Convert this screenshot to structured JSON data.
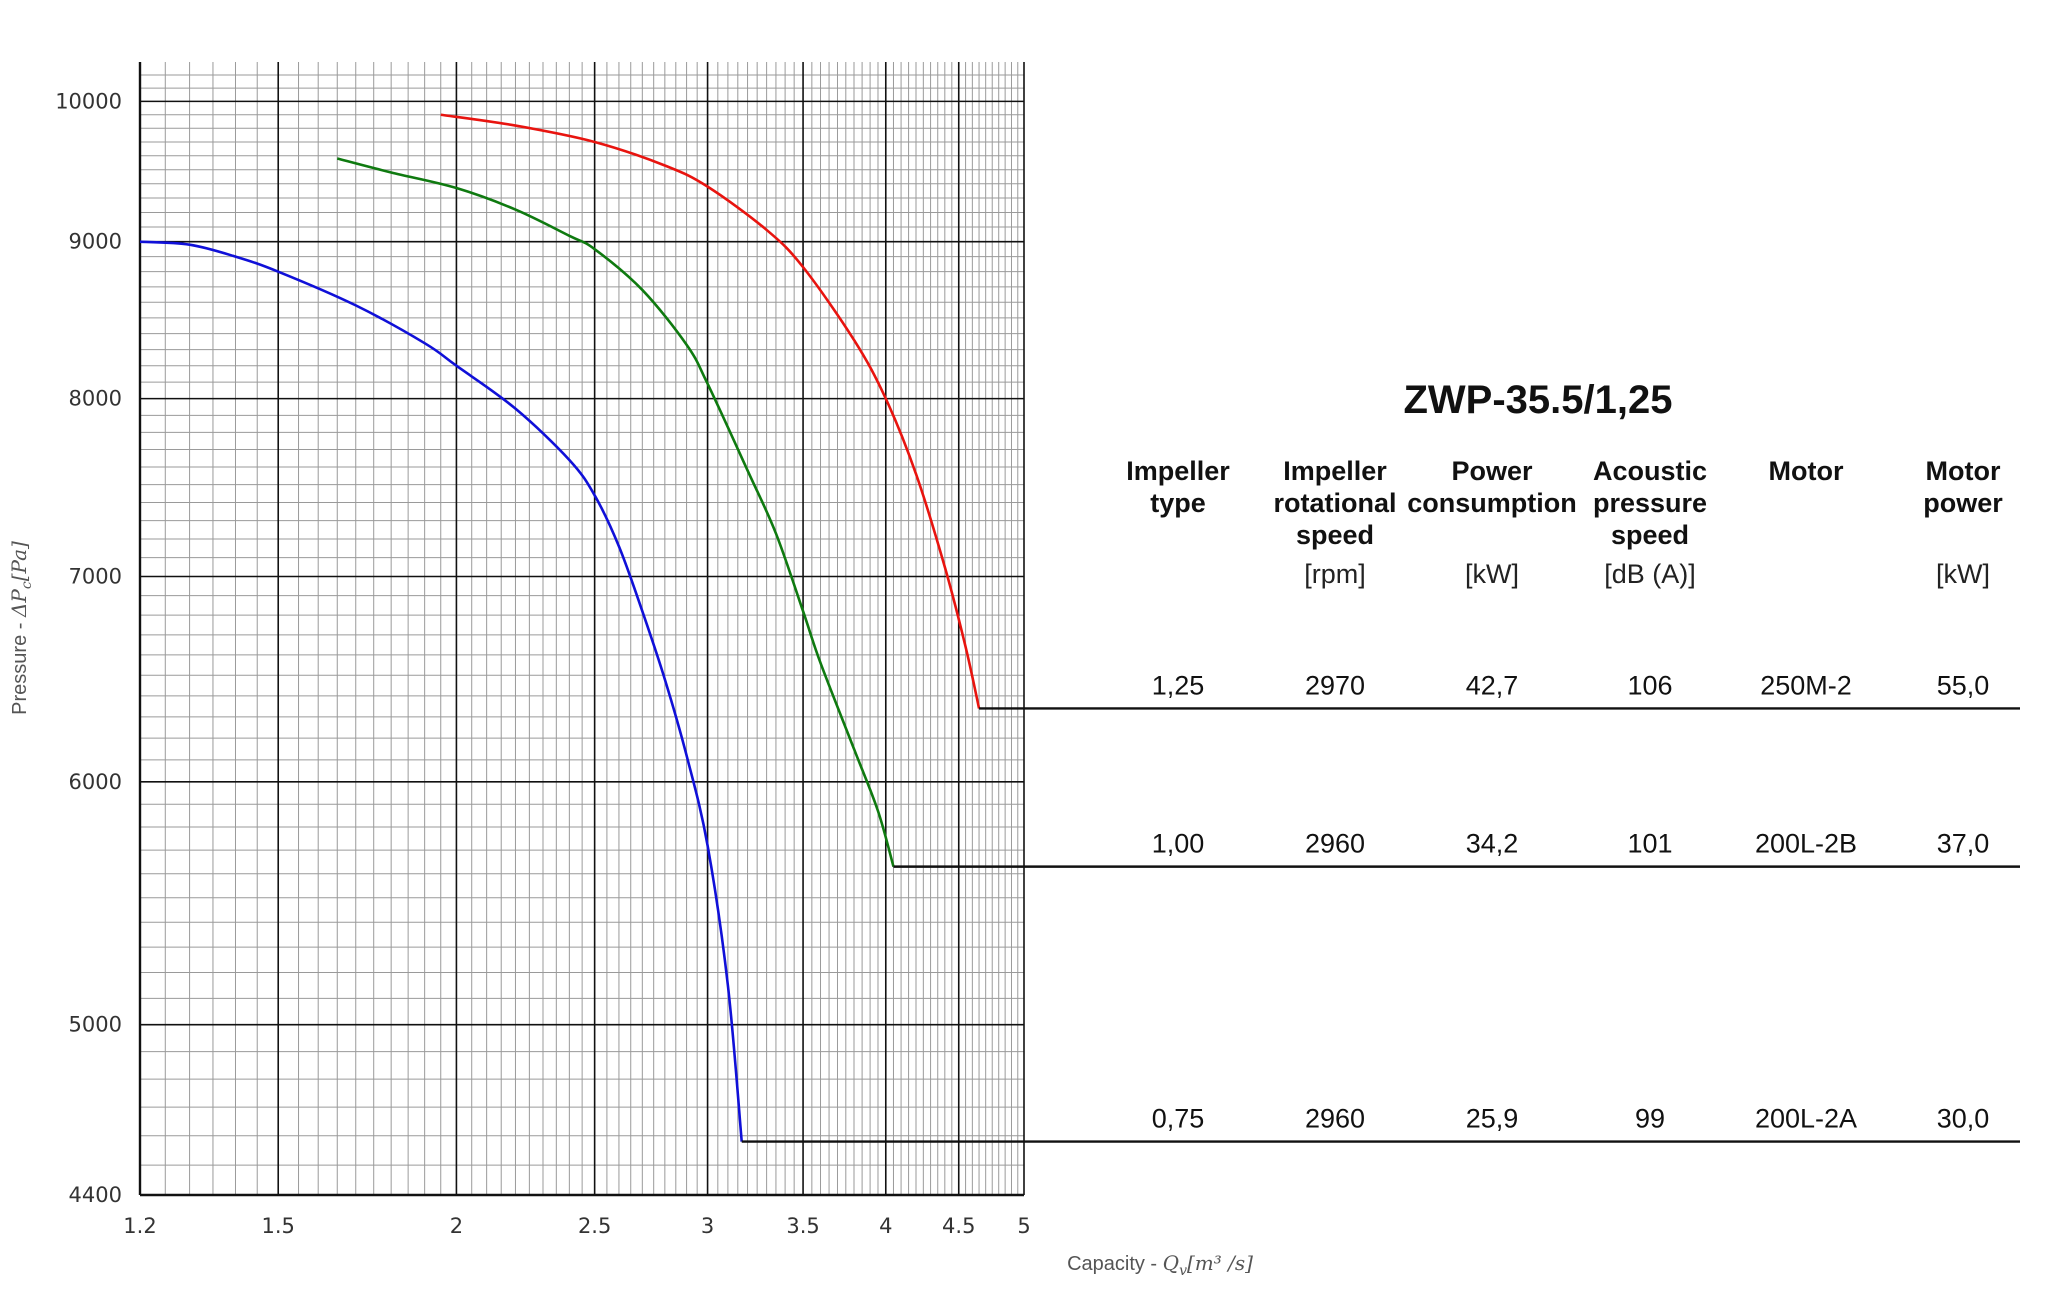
{
  "chart_data": {
    "type": "line",
    "title": "ZWP-35.5/1,25",
    "xlabel": {
      "prefix": "Capacity - ",
      "symbol": "Q",
      "sub": "v",
      "unit": "[m³ /s]"
    },
    "ylabel": {
      "prefix": "Pressure - ",
      "symbol": "ΔP",
      "sub": "c",
      "unit": "[Pa]"
    },
    "x_scale": "log",
    "y_scale": "log",
    "xlim": [
      1.2,
      5
    ],
    "ylim": [
      4400,
      10300
    ],
    "x_ticks": [
      "1.2",
      "1.5",
      "2",
      "2.5",
      "3",
      "3.5",
      "4",
      "4.5",
      "5"
    ],
    "y_ticks": [
      "4400",
      "5000",
      "6000",
      "7000",
      "8000",
      "9000",
      "10000"
    ],
    "grid": true,
    "series": [
      {
        "impeller": "1,25",
        "color": "#e8140f",
        "x": [
          1.95,
          2.2,
          2.5,
          2.8,
          3.0,
          3.3,
          3.5,
          3.8,
          4.0,
          4.2,
          4.4,
          4.55,
          4.65
        ],
        "y": [
          9900,
          9820,
          9700,
          9530,
          9380,
          9080,
          8830,
          8360,
          8000,
          7560,
          7050,
          6640,
          6340
        ]
      },
      {
        "impeller": "1,00",
        "color": "#0f7a10",
        "x": [
          1.65,
          1.8,
          2.0,
          2.2,
          2.4,
          2.5,
          2.7,
          2.9,
          3.0,
          3.2,
          3.35,
          3.5,
          3.6,
          3.8,
          3.95,
          4.05
        ],
        "y": [
          9580,
          9480,
          9370,
          9220,
          9040,
          8950,
          8680,
          8330,
          8090,
          7580,
          7230,
          6820,
          6560,
          6150,
          5870,
          5630
        ]
      },
      {
        "impeller": "0,75",
        "color": "#1010d8",
        "x": [
          1.2,
          1.3,
          1.4,
          1.5,
          1.7,
          1.9,
          2.0,
          2.2,
          2.4,
          2.5,
          2.6,
          2.7,
          2.8,
          2.9,
          3.0,
          3.1,
          3.17
        ],
        "y": [
          9000,
          8980,
          8900,
          8800,
          8580,
          8340,
          8200,
          7940,
          7640,
          7440,
          7160,
          6820,
          6480,
          6120,
          5720,
          5150,
          4580
        ]
      }
    ],
    "table": {
      "headers": [
        {
          "lines": [
            "Impeller",
            "type"
          ],
          "unit": ""
        },
        {
          "lines": [
            "Impeller",
            "rotational",
            "speed"
          ],
          "unit": "[rpm]"
        },
        {
          "lines": [
            "Power",
            "consumption"
          ],
          "unit": "[kW]"
        },
        {
          "lines": [
            "Acoustic",
            "pressure",
            "speed"
          ],
          "unit": "[dB (A)]"
        },
        {
          "lines": [
            "Motor"
          ],
          "unit": ""
        },
        {
          "lines": [
            "Motor",
            "power"
          ],
          "unit": "[kW]"
        }
      ],
      "rows": [
        [
          "1,25",
          "2970",
          "42,7",
          "106",
          "250M-2",
          "55,0"
        ],
        [
          "1,00",
          "2960",
          "34,2",
          "101",
          "200L-2B",
          "37,0"
        ],
        [
          "0,75",
          "2960",
          "25,9",
          "99",
          "200L-2A",
          "30,0"
        ]
      ]
    }
  }
}
